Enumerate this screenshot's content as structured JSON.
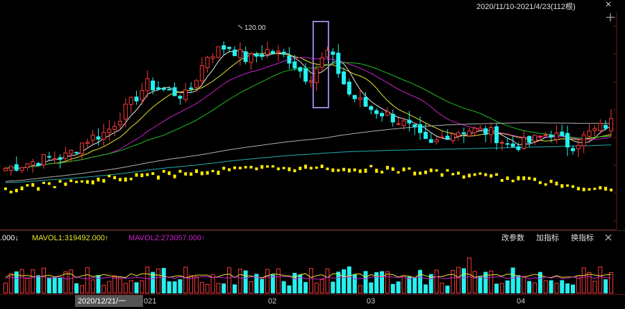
{
  "header": {
    "range": "2020/11/10-2021/4/23(112根)"
  },
  "price_pane": {
    "peak_label": "120.00"
  },
  "volume_pane": {
    "legend": [
      {
        "text": ".000↓",
        "color": "#ffffff"
      },
      {
        "text": "MAVOL1:319492.000↑",
        "color": "#e8e830"
      },
      {
        "text": "MAVOL2:273057.000↑",
        "color": "#d020d0"
      }
    ],
    "buttons": [
      "改参数",
      "加指标",
      "换指标"
    ]
  },
  "xaxis": {
    "date_label": "2020/12/21/一",
    "tail": "021",
    "months": [
      "02",
      "03",
      "04"
    ]
  },
  "colors": {
    "up": "#ff3b3b",
    "down": "#25f0f0",
    "ma5": "#e8e8e8",
    "ma10": "#e8e830",
    "ma20": "#d020d0",
    "ma30": "#20c020",
    "ma60": "#b0b0b0",
    "ma120": "#20b0b0",
    "volume_dots": "#ffee00",
    "highlight": "#9b7fd8"
  },
  "chart_data": {
    "type": "candlestick",
    "period": "2020/11/10-2021/4/23",
    "bar_count": 112,
    "month_ticks": [
      "02",
      "03",
      "04"
    ],
    "annotated_high": 120.0,
    "candles_sampled_ohlc": [
      [
        62,
        64,
        60,
        63
      ],
      [
        63,
        66,
        62,
        65
      ],
      [
        65,
        68,
        64,
        67
      ],
      [
        67,
        70,
        65,
        68
      ],
      [
        68,
        76,
        67,
        75
      ],
      [
        75,
        80,
        73,
        78
      ],
      [
        78,
        90,
        76,
        88
      ],
      [
        88,
        100,
        85,
        98
      ],
      [
        98,
        104,
        92,
        95
      ],
      [
        95,
        101,
        90,
        93
      ],
      [
        93,
        112,
        92,
        110
      ],
      [
        110,
        120,
        106,
        114
      ],
      [
        114,
        117,
        104,
        108
      ],
      [
        108,
        116,
        100,
        112
      ],
      [
        112,
        118,
        106,
        109
      ],
      [
        109,
        114,
        96,
        100
      ],
      [
        100,
        115,
        95,
        112
      ],
      [
        112,
        113,
        90,
        94
      ],
      [
        94,
        96,
        86,
        88
      ],
      [
        88,
        90,
        84,
        85
      ],
      [
        85,
        88,
        78,
        80
      ],
      [
        80,
        82,
        70,
        72
      ],
      [
        72,
        80,
        68,
        78
      ],
      [
        78,
        82,
        75,
        79
      ],
      [
        79,
        84,
        76,
        78
      ],
      [
        78,
        80,
        70,
        72
      ],
      [
        72,
        76,
        68,
        74
      ],
      [
        74,
        80,
        72,
        78
      ],
      [
        78,
        79,
        70,
        72
      ],
      [
        72,
        80,
        70,
        78
      ],
      [
        78,
        84,
        76,
        82
      ]
    ],
    "moving_averages": [
      "MA5",
      "MA10",
      "MA20",
      "MA30",
      "MA60",
      "MA120"
    ],
    "volume": {
      "MAVOL1": 319492.0,
      "MAVOL2": 273057.0
    }
  }
}
